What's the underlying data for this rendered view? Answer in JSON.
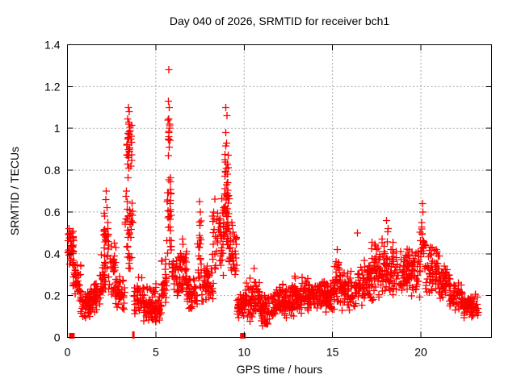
{
  "window": {
    "background": "#ffffff"
  },
  "chart_data": {
    "type": "scatter",
    "title": "Day 040 of 2026, SRMTID for receiver bch1",
    "xlabel": "GPS time / hours",
    "ylabel": "SRMTID / TECUs",
    "xlim": [
      0,
      24
    ],
    "ylim": [
      0,
      1.4
    ],
    "xticks": [
      0,
      5,
      10,
      15,
      20
    ],
    "yticks": [
      0,
      0.2,
      0.4,
      0.6,
      0.8,
      1,
      1.2,
      1.4
    ],
    "grid": true,
    "legend_position": "none",
    "marker": "plus",
    "marker_color": "#ff0000",
    "grid_color": "#a9a9a9",
    "border_color": "#000000",
    "data_representation": "Dense point cloud of ~2000 red '+' markers summarized as cloud_segments; each segment is [x_start_hours, x_end_hours, y_min_TECUs, y_max_TECUs, n_points]. Distinct high points listed in outliers as [x_hours, y_TECUs].",
    "cloud_segments": [
      [
        0.02,
        0.35,
        0.33,
        0.52,
        40
      ],
      [
        0.3,
        0.75,
        0.18,
        0.38,
        35
      ],
      [
        0.7,
        1.35,
        0.09,
        0.24,
        60
      ],
      [
        1.3,
        1.85,
        0.11,
        0.28,
        45
      ],
      [
        1.8,
        2.15,
        0.15,
        0.4,
        30
      ],
      [
        2.05,
        2.35,
        0.3,
        0.66,
        25
      ],
      [
        2.3,
        2.75,
        0.18,
        0.48,
        30
      ],
      [
        2.7,
        3.25,
        0.1,
        0.32,
        40
      ],
      [
        3.25,
        3.75,
        0.28,
        0.78,
        40
      ],
      [
        3.35,
        3.65,
        0.78,
        1.08,
        28
      ],
      [
        3.75,
        4.35,
        0.1,
        0.32,
        45
      ],
      [
        4.3,
        5.35,
        0.07,
        0.2,
        80
      ],
      [
        4.5,
        5.2,
        0.18,
        0.27,
        12
      ],
      [
        5.3,
        5.6,
        0.13,
        0.4,
        25
      ],
      [
        5.62,
        5.88,
        0.3,
        0.85,
        30
      ],
      [
        5.68,
        5.82,
        0.85,
        1.05,
        8
      ],
      [
        5.9,
        6.35,
        0.18,
        0.42,
        35
      ],
      [
        6.35,
        6.75,
        0.2,
        0.48,
        35
      ],
      [
        6.7,
        7.35,
        0.12,
        0.3,
        50
      ],
      [
        7.35,
        7.6,
        0.2,
        0.62,
        22
      ],
      [
        7.6,
        8.25,
        0.15,
        0.36,
        45
      ],
      [
        8.2,
        8.85,
        0.25,
        0.72,
        50
      ],
      [
        8.85,
        9.15,
        0.3,
        0.9,
        35
      ],
      [
        8.9,
        9.1,
        0.55,
        0.95,
        15
      ],
      [
        9.15,
        9.6,
        0.25,
        0.58,
        35
      ],
      [
        9.6,
        10.15,
        0.07,
        0.24,
        45
      ],
      [
        10.1,
        10.9,
        0.06,
        0.3,
        65
      ],
      [
        10.9,
        11.75,
        0.05,
        0.22,
        70
      ],
      [
        11.7,
        12.75,
        0.08,
        0.27,
        90
      ],
      [
        12.7,
        13.75,
        0.1,
        0.3,
        90
      ],
      [
        13.7,
        14.75,
        0.11,
        0.29,
        90
      ],
      [
        14.7,
        15.15,
        0.12,
        0.3,
        40
      ],
      [
        15.1,
        15.45,
        0.15,
        0.4,
        30
      ],
      [
        15.4,
        16.35,
        0.12,
        0.32,
        70
      ],
      [
        16.3,
        17.25,
        0.14,
        0.38,
        70
      ],
      [
        17.2,
        17.85,
        0.15,
        0.48,
        50
      ],
      [
        17.8,
        18.45,
        0.18,
        0.52,
        50
      ],
      [
        18.4,
        19.35,
        0.18,
        0.44,
        70
      ],
      [
        19.3,
        19.95,
        0.18,
        0.45,
        50
      ],
      [
        19.95,
        20.25,
        0.28,
        0.6,
        20
      ],
      [
        20.2,
        21.05,
        0.2,
        0.45,
        60
      ],
      [
        21.0,
        21.65,
        0.16,
        0.38,
        50
      ],
      [
        21.6,
        22.35,
        0.12,
        0.28,
        55
      ],
      [
        22.3,
        23.25,
        0.08,
        0.22,
        70
      ]
    ],
    "outliers": [
      [
        5.74,
        1.28
      ],
      [
        5.72,
        1.13
      ],
      [
        5.76,
        1.1
      ],
      [
        5.7,
        1.04
      ],
      [
        5.78,
        1.0
      ],
      [
        5.73,
        0.96
      ],
      [
        5.75,
        0.91
      ],
      [
        5.71,
        0.87
      ],
      [
        3.44,
        1.1
      ],
      [
        3.5,
        1.08
      ],
      [
        3.47,
        1.03
      ],
      [
        3.55,
        0.99
      ],
      [
        3.4,
        0.95
      ],
      [
        3.52,
        0.9
      ],
      [
        3.46,
        0.86
      ],
      [
        3.58,
        0.82
      ],
      [
        8.97,
        1.1
      ],
      [
        9.02,
        1.06
      ],
      [
        8.95,
        0.98
      ],
      [
        9.0,
        0.93
      ],
      [
        9.05,
        0.83
      ],
      [
        8.93,
        0.79
      ],
      [
        9.01,
        0.73
      ],
      [
        8.98,
        0.68
      ],
      [
        2.2,
        0.7
      ],
      [
        2.16,
        0.66
      ],
      [
        2.24,
        0.62
      ],
      [
        7.48,
        0.65
      ],
      [
        7.52,
        0.6
      ],
      [
        20.08,
        0.64
      ],
      [
        20.12,
        0.6
      ],
      [
        20.05,
        0.55
      ],
      [
        18.05,
        0.56
      ],
      [
        18.15,
        0.52
      ],
      [
        16.42,
        0.5
      ],
      [
        15.28,
        0.42
      ],
      [
        6.52,
        0.47
      ],
      [
        10.55,
        0.33
      ],
      [
        0.08,
        0.52
      ],
      [
        0.15,
        0.5
      ]
    ],
    "baseline_markers": {
      "squares": [
        [
          0.25,
          0
        ],
        [
          9.93,
          0
        ]
      ],
      "ticks": [
        [
          3.73,
          0
        ]
      ]
    }
  }
}
